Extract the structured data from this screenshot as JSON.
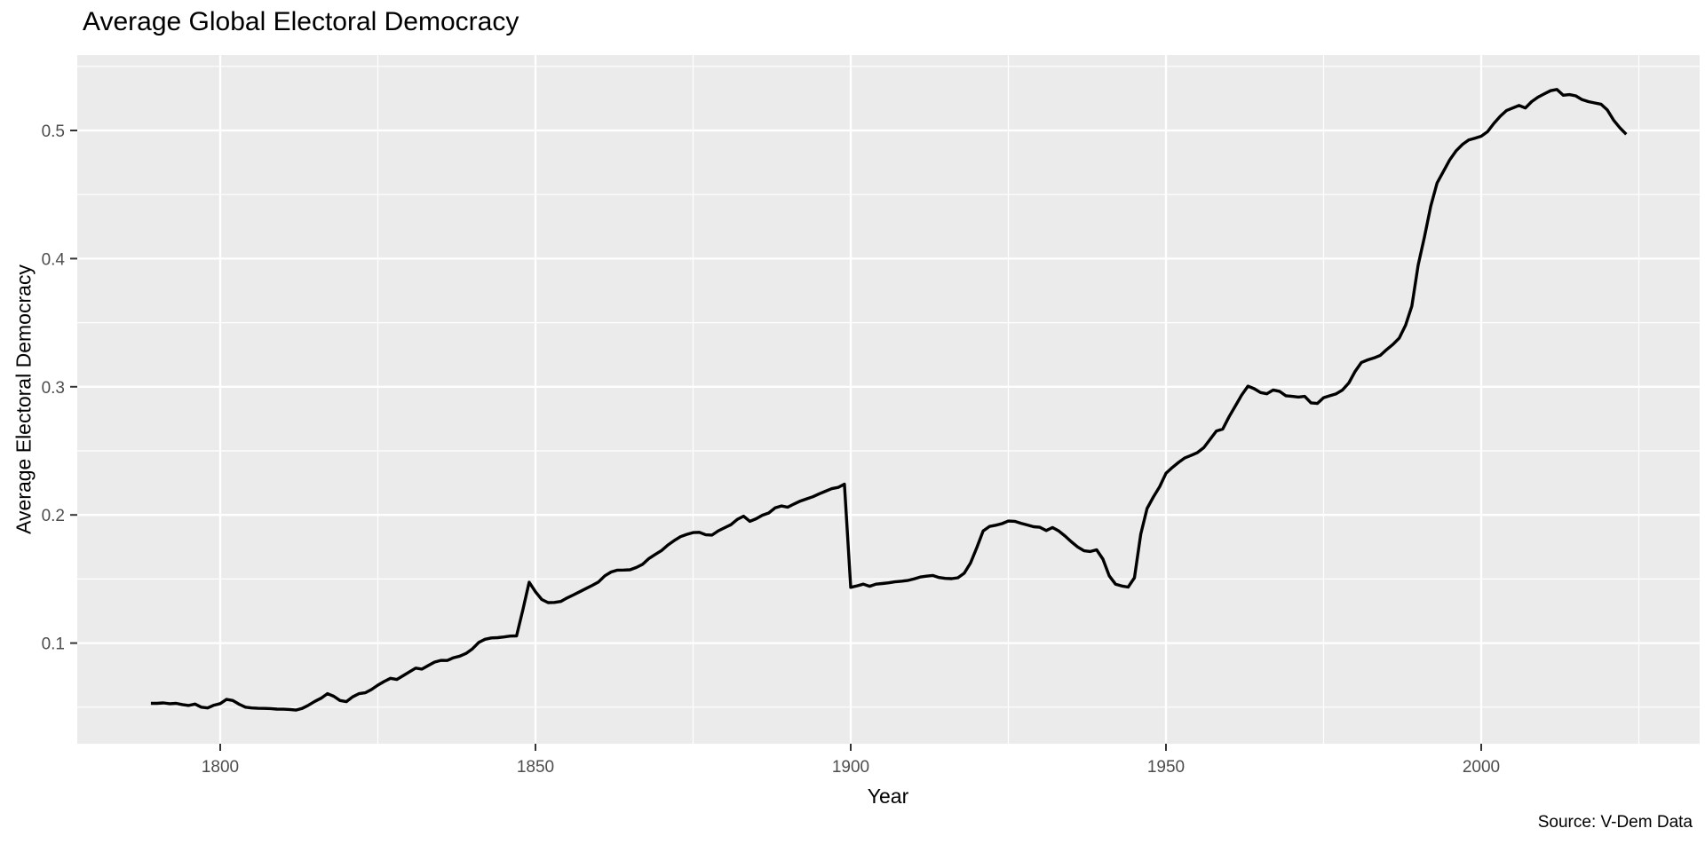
{
  "chart_data": {
    "type": "line",
    "title": "Average Global Electoral Democracy",
    "xlabel": "Year",
    "ylabel": "Average Electoral Democracy",
    "caption": "Source: V-Dem Data",
    "legend": "none",
    "grid": true,
    "x_ticks": [
      1800,
      1850,
      1900,
      1950,
      2000
    ],
    "x_minor_ticks": [
      1825,
      1875,
      1925,
      1975,
      2025
    ],
    "y_ticks": [
      0.1,
      0.2,
      0.3,
      0.4,
      0.5
    ],
    "y_minor_ticks": [
      0.05,
      0.15,
      0.25,
      0.35,
      0.45,
      0.55
    ],
    "xlim": [
      1777.3,
      2034.7
    ],
    "ylim": [
      0.021,
      0.559
    ],
    "colors": {
      "panel_background": "#EBEBEB",
      "gridline": "#FFFFFF",
      "line": "#000000",
      "tick_label": "#4D4D4D",
      "tick_mark": "#333333",
      "text": "#000000"
    },
    "series": [
      {
        "name": "Average Electoral Democracy",
        "points": [
          [
            1789,
            0.053
          ],
          [
            1790,
            0.053
          ],
          [
            1791,
            0.0533
          ],
          [
            1792,
            0.0527
          ],
          [
            1793,
            0.053
          ],
          [
            1794,
            0.052
          ],
          [
            1795,
            0.0513
          ],
          [
            1796,
            0.0524
          ],
          [
            1797,
            0.05
          ],
          [
            1798,
            0.0494
          ],
          [
            1799,
            0.0515
          ],
          [
            1800,
            0.0528
          ],
          [
            1801,
            0.0561
          ],
          [
            1802,
            0.0552
          ],
          [
            1803,
            0.0523
          ],
          [
            1804,
            0.05
          ],
          [
            1805,
            0.0494
          ],
          [
            1806,
            0.0491
          ],
          [
            1807,
            0.049
          ],
          [
            1808,
            0.0489
          ],
          [
            1809,
            0.0485
          ],
          [
            1810,
            0.0484
          ],
          [
            1811,
            0.0482
          ],
          [
            1812,
            0.0477
          ],
          [
            1813,
            0.049
          ],
          [
            1814,
            0.0515
          ],
          [
            1815,
            0.0545
          ],
          [
            1816,
            0.057
          ],
          [
            1817,
            0.0605
          ],
          [
            1818,
            0.0585
          ],
          [
            1819,
            0.0552
          ],
          [
            1820,
            0.0543
          ],
          [
            1821,
            0.058
          ],
          [
            1822,
            0.0605
          ],
          [
            1823,
            0.0612
          ],
          [
            1824,
            0.0638
          ],
          [
            1825,
            0.0672
          ],
          [
            1826,
            0.07
          ],
          [
            1827,
            0.0725
          ],
          [
            1828,
            0.0716
          ],
          [
            1829,
            0.0745
          ],
          [
            1830,
            0.0775
          ],
          [
            1831,
            0.0805
          ],
          [
            1832,
            0.0797
          ],
          [
            1833,
            0.0825
          ],
          [
            1834,
            0.0852
          ],
          [
            1835,
            0.0865
          ],
          [
            1836,
            0.0864
          ],
          [
            1837,
            0.0886
          ],
          [
            1838,
            0.0898
          ],
          [
            1839,
            0.092
          ],
          [
            1840,
            0.0955
          ],
          [
            1841,
            0.1005
          ],
          [
            1842,
            0.103
          ],
          [
            1843,
            0.104
          ],
          [
            1844,
            0.1042
          ],
          [
            1845,
            0.1048
          ],
          [
            1846,
            0.1055
          ],
          [
            1847,
            0.1056
          ],
          [
            1848,
            0.126
          ],
          [
            1849,
            0.1475
          ],
          [
            1850,
            0.14
          ],
          [
            1851,
            0.134
          ],
          [
            1852,
            0.1316
          ],
          [
            1853,
            0.1317
          ],
          [
            1854,
            0.1325
          ],
          [
            1855,
            0.1352
          ],
          [
            1856,
            0.1375
          ],
          [
            1857,
            0.14
          ],
          [
            1858,
            0.1425
          ],
          [
            1859,
            0.145
          ],
          [
            1860,
            0.1477
          ],
          [
            1861,
            0.1525
          ],
          [
            1862,
            0.1555
          ],
          [
            1863,
            0.1569
          ],
          [
            1864,
            0.157
          ],
          [
            1865,
            0.1572
          ],
          [
            1866,
            0.159
          ],
          [
            1867,
            0.1615
          ],
          [
            1868,
            0.166
          ],
          [
            1869,
            0.1692
          ],
          [
            1870,
            0.1722
          ],
          [
            1871,
            0.1765
          ],
          [
            1872,
            0.18
          ],
          [
            1873,
            0.183
          ],
          [
            1874,
            0.1848
          ],
          [
            1875,
            0.1862
          ],
          [
            1876,
            0.1864
          ],
          [
            1877,
            0.1845
          ],
          [
            1878,
            0.1843
          ],
          [
            1879,
            0.1876
          ],
          [
            1880,
            0.19
          ],
          [
            1881,
            0.1924
          ],
          [
            1882,
            0.1965
          ],
          [
            1883,
            0.199
          ],
          [
            1884,
            0.195
          ],
          [
            1885,
            0.197
          ],
          [
            1886,
            0.1998
          ],
          [
            1887,
            0.2015
          ],
          [
            1888,
            0.2055
          ],
          [
            1889,
            0.207
          ],
          [
            1890,
            0.206
          ],
          [
            1891,
            0.2085
          ],
          [
            1892,
            0.2108
          ],
          [
            1893,
            0.2125
          ],
          [
            1894,
            0.2142
          ],
          [
            1895,
            0.2165
          ],
          [
            1896,
            0.2185
          ],
          [
            1897,
            0.2205
          ],
          [
            1898,
            0.2215
          ],
          [
            1899,
            0.224
          ],
          [
            1900,
            0.1435
          ],
          [
            1901,
            0.1447
          ],
          [
            1902,
            0.146
          ],
          [
            1903,
            0.1443
          ],
          [
            1904,
            0.146
          ],
          [
            1905,
            0.1465
          ],
          [
            1906,
            0.147
          ],
          [
            1907,
            0.1478
          ],
          [
            1908,
            0.1483
          ],
          [
            1909,
            0.1488
          ],
          [
            1910,
            0.15
          ],
          [
            1911,
            0.1515
          ],
          [
            1912,
            0.1522
          ],
          [
            1913,
            0.1528
          ],
          [
            1914,
            0.1512
          ],
          [
            1915,
            0.1505
          ],
          [
            1916,
            0.1503
          ],
          [
            1917,
            0.151
          ],
          [
            1918,
            0.1545
          ],
          [
            1919,
            0.1625
          ],
          [
            1920,
            0.1745
          ],
          [
            1921,
            0.1875
          ],
          [
            1922,
            0.191
          ],
          [
            1923,
            0.192
          ],
          [
            1924,
            0.1932
          ],
          [
            1925,
            0.1952
          ],
          [
            1926,
            0.195
          ],
          [
            1927,
            0.1935
          ],
          [
            1928,
            0.1922
          ],
          [
            1929,
            0.1908
          ],
          [
            1930,
            0.1904
          ],
          [
            1931,
            0.1878
          ],
          [
            1932,
            0.1902
          ],
          [
            1933,
            0.1875
          ],
          [
            1934,
            0.1835
          ],
          [
            1935,
            0.179
          ],
          [
            1936,
            0.175
          ],
          [
            1937,
            0.172
          ],
          [
            1938,
            0.1715
          ],
          [
            1939,
            0.1728
          ],
          [
            1940,
            0.1655
          ],
          [
            1941,
            0.1525
          ],
          [
            1942,
            0.146
          ],
          [
            1943,
            0.1445
          ],
          [
            1944,
            0.1437
          ],
          [
            1945,
            0.151
          ],
          [
            1946,
            0.185
          ],
          [
            1947,
            0.205
          ],
          [
            1948,
            0.214
          ],
          [
            1949,
            0.222
          ],
          [
            1950,
            0.2325
          ],
          [
            1951,
            0.237
          ],
          [
            1952,
            0.241
          ],
          [
            1953,
            0.2445
          ],
          [
            1954,
            0.2465
          ],
          [
            1955,
            0.2487
          ],
          [
            1956,
            0.2525
          ],
          [
            1957,
            0.259
          ],
          [
            1958,
            0.2655
          ],
          [
            1959,
            0.267
          ],
          [
            1960,
            0.2765
          ],
          [
            1961,
            0.285
          ],
          [
            1962,
            0.2935
          ],
          [
            1963,
            0.3005
          ],
          [
            1964,
            0.2985
          ],
          [
            1965,
            0.2955
          ],
          [
            1966,
            0.2945
          ],
          [
            1967,
            0.2975
          ],
          [
            1968,
            0.2965
          ],
          [
            1969,
            0.293
          ],
          [
            1970,
            0.2925
          ],
          [
            1971,
            0.292
          ],
          [
            1972,
            0.2925
          ],
          [
            1973,
            0.2875
          ],
          [
            1974,
            0.287
          ],
          [
            1975,
            0.2915
          ],
          [
            1976,
            0.293
          ],
          [
            1977,
            0.2945
          ],
          [
            1978,
            0.2975
          ],
          [
            1979,
            0.303
          ],
          [
            1980,
            0.312
          ],
          [
            1981,
            0.319
          ],
          [
            1982,
            0.321
          ],
          [
            1983,
            0.3225
          ],
          [
            1984,
            0.3245
          ],
          [
            1985,
            0.329
          ],
          [
            1986,
            0.333
          ],
          [
            1987,
            0.338
          ],
          [
            1988,
            0.348
          ],
          [
            1989,
            0.363
          ],
          [
            1990,
            0.395
          ],
          [
            1991,
            0.417
          ],
          [
            1992,
            0.441
          ],
          [
            1993,
            0.459
          ],
          [
            1994,
            0.468
          ],
          [
            1995,
            0.477
          ],
          [
            1996,
            0.484
          ],
          [
            1997,
            0.489
          ],
          [
            1998,
            0.4925
          ],
          [
            1999,
            0.494
          ],
          [
            2000,
            0.4955
          ],
          [
            2001,
            0.499
          ],
          [
            2002,
            0.5055
          ],
          [
            2003,
            0.511
          ],
          [
            2004,
            0.5155
          ],
          [
            2005,
            0.5175
          ],
          [
            2006,
            0.5195
          ],
          [
            2007,
            0.5175
          ],
          [
            2008,
            0.5225
          ],
          [
            2009,
            0.526
          ],
          [
            2010,
            0.5285
          ],
          [
            2011,
            0.531
          ],
          [
            2012,
            0.532
          ],
          [
            2013,
            0.5275
          ],
          [
            2014,
            0.528
          ],
          [
            2015,
            0.527
          ],
          [
            2016,
            0.524
          ],
          [
            2017,
            0.5225
          ],
          [
            2018,
            0.5215
          ],
          [
            2019,
            0.5205
          ],
          [
            2020,
            0.516
          ],
          [
            2021,
            0.508
          ],
          [
            2022,
            0.502
          ],
          [
            2023,
            0.497
          ]
        ]
      }
    ]
  }
}
